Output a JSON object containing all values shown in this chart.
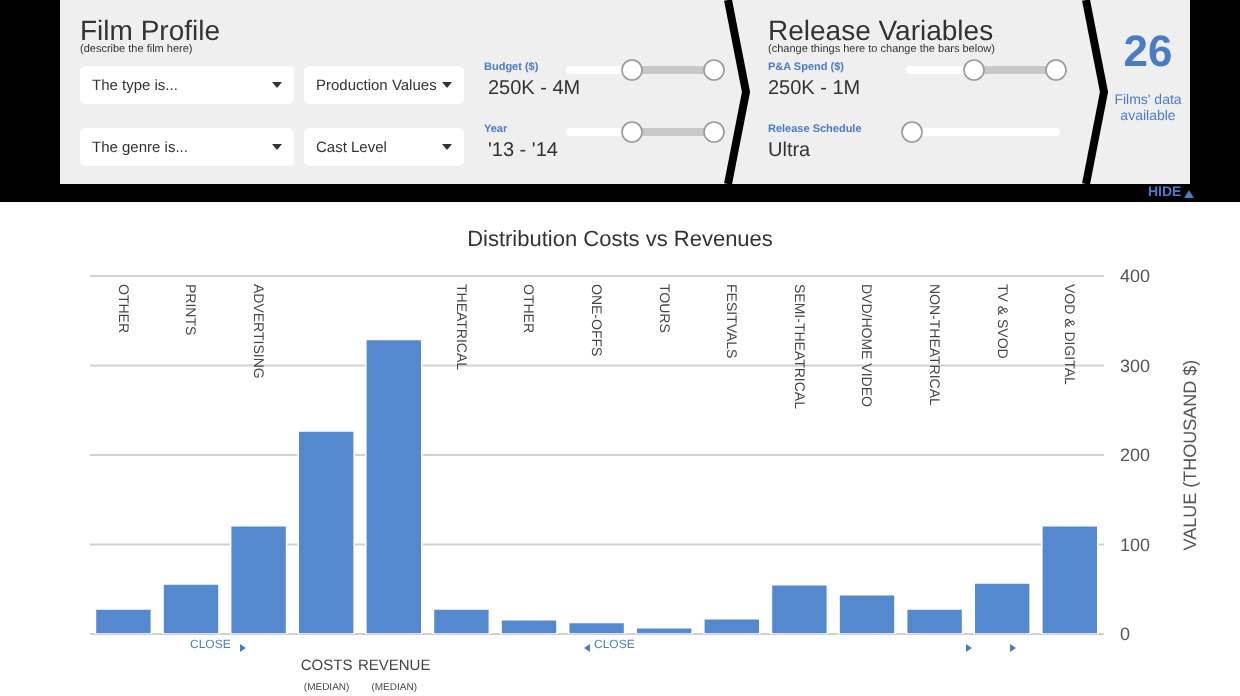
{
  "chart_data": {
    "type": "bar",
    "title": "Distribution Costs vs Revenues",
    "ylabel": "VALUE (THOUSAND $)",
    "categories": [
      "OTHER",
      "PRINTS",
      "ADVERTISING",
      "COSTS$_{(MEDIAN)}$",
      "REVENUE$_{(MEDIAN)}$",
      "THEATRICAL",
      "OTHER",
      "ONE-OFFS",
      "TOURS",
      "FESITVALS",
      "SEMI-THEATRICAL",
      "DVD/HOME VIDEO",
      "NON-THEATRICAL",
      "TV & SVOD",
      "VOD & DIGITAL"
    ],
    "values": [
      28,
      56,
      121,
      227,
      329,
      28,
      16,
      13,
      7,
      17,
      55,
      44,
      28,
      57,
      121
    ],
    "color": "#5589cf",
    "ylim": [
      0,
      400
    ],
    "yticks": [
      0,
      100,
      200,
      300,
      400
    ],
    "grid": "y",
    "annotations": [
      "Film Profile",
      "(describe the film here)",
      "The type is...",
      "Production Values",
      "Budget ($)",
      "250K - 4M",
      "The genre is...",
      "Cast Level",
      "Year",
      "'13 - '14",
      "Release Variables",
      "(change things here to change the bars below)",
      "P&A Spend ($)",
      "250K - 1M",
      "Release Schedule",
      "Ultra",
      "26",
      "Films' data available",
      "HIDE",
      "CLOSE",
      "CLOSE"
    ]
  }
}
